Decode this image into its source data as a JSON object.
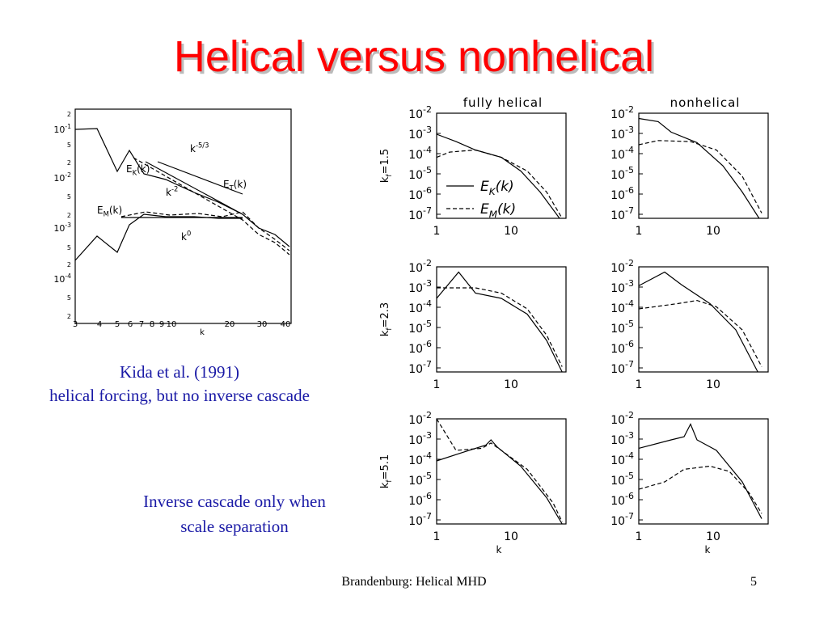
{
  "title": "Helical versus nonhelical",
  "left_figure": {
    "y_labels": [
      {
        "base": "2"
      },
      {
        "base": "10",
        "sup": "-1"
      },
      {
        "base": "5"
      },
      {
        "base": "2"
      },
      {
        "base": "10",
        "sup": "-2"
      },
      {
        "base": "5"
      },
      {
        "base": "2"
      },
      {
        "base": "10",
        "sup": "-3"
      },
      {
        "base": "5"
      },
      {
        "base": "2"
      },
      {
        "base": "10",
        "sup": "-4"
      },
      {
        "base": "5"
      },
      {
        "base": "2"
      }
    ],
    "x_labels": [
      "3",
      "4",
      "5",
      "6",
      "7",
      "8",
      "9",
      "10",
      "20",
      "30",
      "40"
    ],
    "x_label": "k",
    "annotations": [
      {
        "base": "k",
        "sup": "-5/3"
      },
      {
        "base": "E",
        "sub": "K",
        "tail": "(k)"
      },
      {
        "base": "k",
        "sup": "-2"
      },
      {
        "base": "E",
        "sub": "T",
        "tail": "(k)"
      },
      {
        "base": "E",
        "sub": "M",
        "tail": "(k)"
      },
      {
        "base": "k",
        "sup": "0"
      }
    ]
  },
  "captions": [
    "Kida et al. (1991)",
    "helical forcing, but no inverse cascade",
    "Inverse cascade only when",
    "scale separation"
  ],
  "right_figure": {
    "column_titles": [
      "fully helical",
      "nonhelical"
    ],
    "row_labels": [
      {
        "base": "k",
        "sub": "f",
        "tail": "=1.5"
      },
      {
        "base": "k",
        "sub": "f",
        "tail": "=2.3"
      },
      {
        "base": "k",
        "sub": "f",
        "tail": "=5.1"
      }
    ],
    "y_base": "10",
    "y_exponents": [
      "-2",
      "-3",
      "-4",
      "-5",
      "-6",
      "-7"
    ],
    "x_labels": [
      "1",
      "10"
    ],
    "x_label": "k",
    "legend": [
      {
        "base": "E",
        "sub": "K",
        "tail": "(k)"
      },
      {
        "base": "E",
        "sub": "M",
        "tail": "(k)"
      }
    ]
  },
  "footer": {
    "text": "Brandenburg: Helical MHD",
    "page": "5"
  }
}
